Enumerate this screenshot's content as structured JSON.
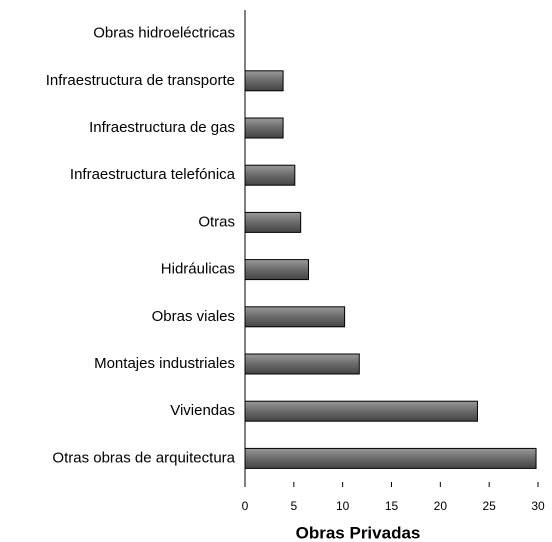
{
  "chart_data": {
    "type": "bar",
    "orientation": "horizontal",
    "x_label": "Obras Privadas",
    "categories": [
      "Obras hidroeléctricas",
      "Infraestructura de transporte",
      "Infraestructura de gas",
      "Infraestructura telefónica",
      "Otras",
      "Hidráulicas",
      "Obras viales",
      "Montajes industriales",
      "Viviendas",
      "Otras obras de arquitectura"
    ],
    "values": [
      0,
      3.9,
      3.9,
      5.1,
      5.7,
      6.5,
      10.2,
      11.7,
      23.8,
      29.8
    ],
    "color": "#777777",
    "xlim": [
      0,
      30
    ],
    "xticks": [
      0,
      5,
      10,
      15,
      20,
      25,
      30
    ],
    "grid": false
  }
}
